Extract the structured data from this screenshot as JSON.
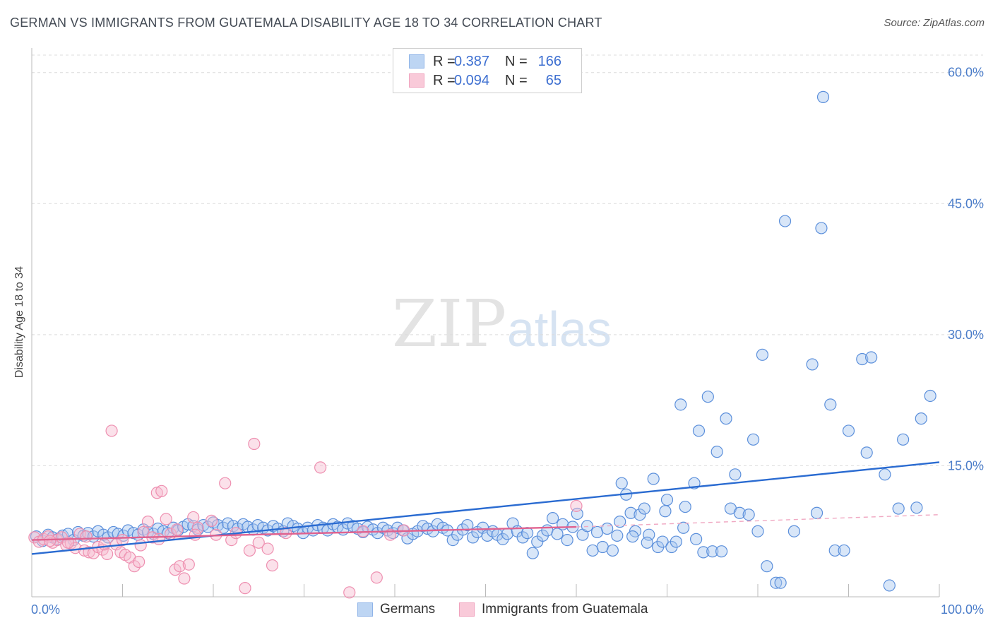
{
  "title": "GERMAN VS IMMIGRANTS FROM GUATEMALA DISABILITY AGE 18 TO 34 CORRELATION CHART",
  "source": "Source: ZipAtlas.com",
  "watermark": {
    "zip": "ZIP",
    "atlas": "atlas"
  },
  "legend": {
    "rows": [
      {
        "r_label": "R =",
        "r": "0.387",
        "n_label": "N =",
        "n": "166",
        "color": "#8fb4e8",
        "fill": "#bdd5f3"
      },
      {
        "r_label": "R =",
        "r": "0.094",
        "n_label": "N =",
        "n": "65",
        "color": "#f0a3be",
        "fill": "#f9cad9"
      }
    ]
  },
  "chart_data": {
    "type": "scatter",
    "title": "GERMAN VS IMMIGRANTS FROM GUATEMALA DISABILITY AGE 18 TO 34 CORRELATION CHART",
    "xlabel": "",
    "ylabel": "Disability Age 18 to 34",
    "xlim": [
      0,
      100
    ],
    "ylim": [
      0,
      62
    ],
    "x_tick_labels": [
      "0.0%",
      "100.0%"
    ],
    "y_ticks": [
      15,
      30,
      45,
      60
    ],
    "y_tick_labels": [
      "15.0%",
      "30.0%",
      "45.0%",
      "60.0%"
    ],
    "grid": true,
    "legend_placement": "bottom",
    "series": [
      {
        "name": "Germans",
        "color": "#5b8fdb",
        "fill": "#a9c8f0",
        "trend": {
          "x": [
            0,
            100
          ],
          "y": [
            4.9,
            15.4
          ],
          "color": "#2a6bd1"
        },
        "points": [
          [
            0.5,
            6.9
          ],
          [
            1.2,
            6.4
          ],
          [
            1.8,
            7.1
          ],
          [
            2.3,
            6.8
          ],
          [
            2.9,
            6.6
          ],
          [
            3.4,
            7.0
          ],
          [
            4.0,
            7.2
          ],
          [
            4.6,
            6.5
          ],
          [
            5.1,
            7.4
          ],
          [
            5.7,
            7.0
          ],
          [
            6.2,
            7.3
          ],
          [
            6.8,
            6.9
          ],
          [
            7.3,
            7.5
          ],
          [
            7.9,
            7.1
          ],
          [
            8.4,
            6.8
          ],
          [
            9.0,
            7.4
          ],
          [
            9.5,
            7.2
          ],
          [
            10.1,
            7.0
          ],
          [
            10.6,
            7.6
          ],
          [
            11.2,
            7.3
          ],
          [
            11.7,
            7.1
          ],
          [
            12.3,
            7.7
          ],
          [
            12.8,
            7.4
          ],
          [
            13.4,
            7.2
          ],
          [
            13.9,
            7.8
          ],
          [
            14.5,
            7.5
          ],
          [
            15.0,
            7.3
          ],
          [
            15.6,
            7.9
          ],
          [
            16.1,
            7.6
          ],
          [
            16.7,
            8.0
          ],
          [
            17.2,
            8.3
          ],
          [
            17.8,
            8.1
          ],
          [
            18.3,
            7.7
          ],
          [
            18.9,
            8.2
          ],
          [
            19.4,
            8.0
          ],
          [
            20.0,
            8.5
          ],
          [
            20.5,
            8.2
          ],
          [
            21.1,
            7.9
          ],
          [
            21.6,
            8.4
          ],
          [
            22.2,
            8.1
          ],
          [
            22.7,
            7.8
          ],
          [
            23.3,
            8.3
          ],
          [
            23.8,
            8.0
          ],
          [
            24.4,
            7.7
          ],
          [
            24.9,
            8.2
          ],
          [
            25.5,
            7.9
          ],
          [
            26.0,
            7.6
          ],
          [
            26.6,
            8.1
          ],
          [
            27.1,
            7.8
          ],
          [
            27.7,
            7.5
          ],
          [
            28.2,
            8.4
          ],
          [
            28.8,
            8.1
          ],
          [
            29.3,
            7.8
          ],
          [
            29.9,
            7.3
          ],
          [
            30.4,
            7.9
          ],
          [
            31.0,
            7.6
          ],
          [
            31.5,
            8.2
          ],
          [
            32.1,
            7.9
          ],
          [
            32.6,
            7.6
          ],
          [
            33.2,
            8.3
          ],
          [
            33.7,
            8.0
          ],
          [
            34.3,
            7.7
          ],
          [
            34.8,
            8.4
          ],
          [
            35.4,
            8.1
          ],
          [
            35.9,
            7.8
          ],
          [
            36.5,
            7.4
          ],
          [
            37.0,
            8.0
          ],
          [
            37.6,
            7.7
          ],
          [
            38.1,
            7.3
          ],
          [
            38.7,
            7.9
          ],
          [
            39.2,
            7.6
          ],
          [
            39.8,
            7.3
          ],
          [
            40.3,
            7.9
          ],
          [
            40.9,
            7.6
          ],
          [
            41.4,
            6.7
          ],
          [
            42.0,
            7.2
          ],
          [
            42.5,
            7.5
          ],
          [
            43.1,
            8.1
          ],
          [
            43.6,
            7.8
          ],
          [
            44.2,
            7.5
          ],
          [
            44.7,
            8.3
          ],
          [
            45.3,
            7.9
          ],
          [
            45.8,
            7.6
          ],
          [
            46.4,
            6.5
          ],
          [
            46.9,
            7.1
          ],
          [
            47.5,
            7.7
          ],
          [
            48.0,
            8.2
          ],
          [
            48.6,
            6.8
          ],
          [
            49.1,
            7.4
          ],
          [
            49.7,
            7.9
          ],
          [
            50.2,
            7.0
          ],
          [
            50.8,
            7.5
          ],
          [
            51.3,
            7.1
          ],
          [
            51.9,
            6.6
          ],
          [
            52.4,
            7.2
          ],
          [
            53.0,
            8.4
          ],
          [
            53.5,
            7.5
          ],
          [
            54.1,
            6.8
          ],
          [
            54.6,
            7.3
          ],
          [
            55.2,
            5.0
          ],
          [
            55.7,
            6.3
          ],
          [
            56.3,
            7.0
          ],
          [
            56.8,
            7.6
          ],
          [
            57.4,
            9.0
          ],
          [
            57.9,
            7.2
          ],
          [
            58.5,
            8.3
          ],
          [
            59.0,
            6.5
          ],
          [
            59.6,
            8.0
          ],
          [
            60.1,
            9.5
          ],
          [
            60.7,
            7.1
          ],
          [
            61.2,
            8.1
          ],
          [
            61.8,
            5.3
          ],
          [
            62.3,
            7.4
          ],
          [
            62.9,
            5.7
          ],
          [
            63.4,
            7.8
          ],
          [
            64.0,
            5.3
          ],
          [
            64.5,
            7.0
          ],
          [
            65.0,
            13.0
          ],
          [
            65.5,
            11.7
          ],
          [
            66.0,
            9.6
          ],
          [
            66.5,
            7.5
          ],
          [
            67.0,
            9.4
          ],
          [
            67.5,
            10.1
          ],
          [
            68.0,
            7.1
          ],
          [
            68.5,
            13.5
          ],
          [
            69.0,
            5.7
          ],
          [
            69.5,
            6.3
          ],
          [
            70.0,
            11.1
          ],
          [
            70.5,
            5.7
          ],
          [
            71.0,
            6.3
          ],
          [
            72.0,
            10.3
          ],
          [
            73.0,
            13.0
          ],
          [
            74.0,
            5.1
          ],
          [
            75.0,
            5.2
          ],
          [
            76.0,
            5.2
          ],
          [
            77.0,
            10.1
          ],
          [
            78.0,
            9.6
          ],
          [
            79.0,
            9.4
          ],
          [
            80.0,
            7.5
          ],
          [
            81.0,
            3.5
          ],
          [
            82.0,
            1.6
          ],
          [
            82.5,
            1.6
          ],
          [
            86.0,
            26.6
          ],
          [
            88.0,
            22.0
          ],
          [
            90.0,
            19.0
          ],
          [
            92.0,
            16.5
          ],
          [
            94.0,
            14.0
          ],
          [
            96.0,
            18.0
          ],
          [
            98.0,
            20.4
          ],
          [
            99.0,
            23.0
          ],
          [
            71.5,
            22.0
          ],
          [
            73.5,
            19.0
          ],
          [
            75.5,
            16.6
          ],
          [
            77.5,
            14.0
          ],
          [
            79.5,
            18.0
          ],
          [
            76.5,
            20.4
          ],
          [
            74.5,
            22.9
          ],
          [
            80.5,
            27.7
          ],
          [
            83.0,
            43.0
          ],
          [
            87.0,
            42.2
          ],
          [
            91.5,
            27.2
          ],
          [
            92.5,
            27.4
          ],
          [
            87.2,
            57.2
          ],
          [
            94.5,
            1.3
          ],
          [
            84.0,
            7.5
          ],
          [
            86.5,
            9.6
          ],
          [
            88.5,
            5.3
          ],
          [
            89.5,
            5.3
          ],
          [
            95.5,
            10.1
          ],
          [
            97.5,
            10.2
          ],
          [
            64.8,
            8.6
          ],
          [
            66.2,
            6.9
          ],
          [
            67.8,
            6.2
          ],
          [
            69.8,
            9.8
          ],
          [
            71.8,
            7.9
          ],
          [
            73.2,
            6.6
          ]
        ]
      },
      {
        "name": "Immigrants from Guatemala",
        "color": "#ee8fb0",
        "fill": "#f6bcd0",
        "trend": {
          "x": [
            0,
            60
          ],
          "y": [
            6.5,
            8.0
          ],
          "color": "#e0628f"
        },
        "trend_dashed": {
          "x": [
            60,
            100
          ],
          "y": [
            8.0,
            9.4
          ],
          "color": "#f0a8c2"
        },
        "points": [
          [
            0.3,
            6.8
          ],
          [
            0.8,
            6.3
          ],
          [
            1.3,
            6.6
          ],
          [
            1.8,
            6.9
          ],
          [
            2.3,
            6.2
          ],
          [
            2.8,
            6.5
          ],
          [
            3.3,
            6.8
          ],
          [
            3.8,
            5.9
          ],
          [
            4.3,
            6.1
          ],
          [
            4.8,
            5.6
          ],
          [
            5.3,
            7.2
          ],
          [
            5.8,
            5.3
          ],
          [
            6.3,
            5.1
          ],
          [
            6.8,
            5.0
          ],
          [
            7.3,
            5.7
          ],
          [
            7.8,
            5.4
          ],
          [
            8.3,
            4.9
          ],
          [
            8.8,
            19.0
          ],
          [
            9.3,
            6.0
          ],
          [
            9.8,
            5.1
          ],
          [
            10.3,
            4.8
          ],
          [
            10.8,
            4.5
          ],
          [
            11.3,
            3.5
          ],
          [
            11.8,
            4.0
          ],
          [
            12.3,
            7.4
          ],
          [
            12.8,
            8.6
          ],
          [
            13.3,
            6.8
          ],
          [
            13.8,
            11.9
          ],
          [
            14.3,
            12.1
          ],
          [
            14.8,
            8.9
          ],
          [
            15.3,
            7.2
          ],
          [
            15.8,
            3.1
          ],
          [
            16.3,
            3.5
          ],
          [
            16.8,
            2.1
          ],
          [
            17.3,
            3.7
          ],
          [
            17.8,
            9.1
          ],
          [
            18.3,
            7.9
          ],
          [
            19.8,
            8.7
          ],
          [
            20.3,
            7.1
          ],
          [
            21.3,
            13.0
          ],
          [
            22.0,
            6.5
          ],
          [
            22.5,
            7.3
          ],
          [
            23.5,
            1.0
          ],
          [
            24.5,
            17.5
          ],
          [
            24.0,
            5.3
          ],
          [
            25.0,
            6.2
          ],
          [
            26.0,
            5.5
          ],
          [
            26.5,
            3.6
          ],
          [
            28.0,
            7.3
          ],
          [
            31.8,
            14.8
          ],
          [
            35.0,
            0.5
          ],
          [
            36.5,
            7.5
          ],
          [
            38.0,
            2.2
          ],
          [
            39.5,
            7.1
          ],
          [
            41.0,
            7.6
          ],
          [
            60.0,
            10.4
          ],
          [
            2.0,
            6.4
          ],
          [
            4.0,
            6.2
          ],
          [
            6.0,
            6.9
          ],
          [
            8.0,
            6.0
          ],
          [
            10.0,
            6.5
          ],
          [
            12.0,
            5.9
          ],
          [
            14.0,
            6.6
          ],
          [
            16.0,
            7.7
          ],
          [
            18.0,
            7.1
          ]
        ]
      }
    ]
  }
}
